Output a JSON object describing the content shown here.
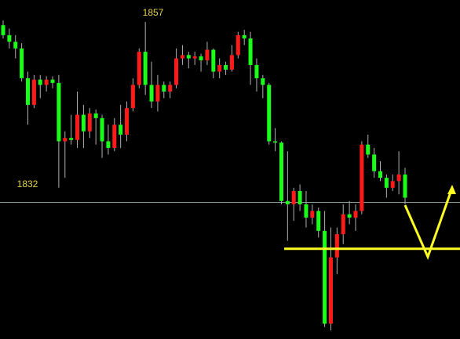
{
  "chart_data": {
    "type": "candlestick",
    "ylim": [
      1809.2,
      1860.3
    ],
    "up_color": "#ff1a1a",
    "down_color": "#1aff1a",
    "wick_color": "#b0b0b0",
    "price_line": 1829.8,
    "price_line_color": "#8a9a9a",
    "support_line": 1822.8,
    "support_color": "#ffff22",
    "annotations": [
      {
        "text": "1857"
      },
      {
        "text": "1832"
      }
    ],
    "ohlc": [
      [
        1856.5,
        1857.2,
        1854.5,
        1855
      ],
      [
        1855,
        1856,
        1853,
        1854
      ],
      [
        1854,
        1855,
        1851.5,
        1853
      ],
      [
        1853,
        1853.8,
        1848,
        1848.5
      ],
      [
        1848.5,
        1849.5,
        1841.5,
        1844.5
      ],
      [
        1844.5,
        1849,
        1844,
        1848.3
      ],
      [
        1848.3,
        1849,
        1845.5,
        1847.5
      ],
      [
        1847.5,
        1848.8,
        1846.5,
        1848.3
      ],
      [
        1848.3,
        1848.8,
        1847,
        1847.8
      ],
      [
        1847.8,
        1849,
        1832,
        1839
      ],
      [
        1839,
        1840.5,
        1833.5,
        1839.5
      ],
      [
        1839.5,
        1843,
        1838.5,
        1839.2
      ],
      [
        1839.2,
        1846.5,
        1838,
        1843
      ],
      [
        1843,
        1844.5,
        1838,
        1840.5
      ],
      [
        1840.5,
        1844,
        1839.5,
        1843.2
      ],
      [
        1843.2,
        1843.8,
        1838.5,
        1842.5
      ],
      [
        1842.5,
        1843,
        1836.5,
        1839
      ],
      [
        1839,
        1841.5,
        1837,
        1838
      ],
      [
        1838,
        1842.5,
        1837.5,
        1841.5
      ],
      [
        1841.5,
        1844.5,
        1838,
        1840
      ],
      [
        1840,
        1845,
        1839,
        1844
      ],
      [
        1844,
        1848.5,
        1843.5,
        1847.5
      ],
      [
        1847.5,
        1853,
        1847,
        1852.5
      ],
      [
        1852.5,
        1857,
        1846,
        1847.5
      ],
      [
        1847.5,
        1851,
        1844,
        1845
      ],
      [
        1845,
        1849,
        1843.5,
        1847.5
      ],
      [
        1847.5,
        1848,
        1845.5,
        1846.5
      ],
      [
        1846.5,
        1848,
        1845.5,
        1847.5
      ],
      [
        1847.5,
        1853,
        1847,
        1851.5
      ],
      [
        1851.5,
        1853.5,
        1850.5,
        1852
      ],
      [
        1852,
        1852.5,
        1850,
        1851.5
      ],
      [
        1851.5,
        1852.5,
        1850.5,
        1851.8
      ],
      [
        1851.8,
        1852.2,
        1849.5,
        1851.2
      ],
      [
        1851.2,
        1854,
        1850.5,
        1852.8
      ],
      [
        1852.8,
        1853,
        1848.5,
        1849.5
      ],
      [
        1849.5,
        1851.5,
        1848.5,
        1850.5
      ],
      [
        1850.5,
        1851,
        1849,
        1849.8
      ],
      [
        1849.8,
        1853.5,
        1849.5,
        1852
      ],
      [
        1852,
        1855.5,
        1851.5,
        1855
      ],
      [
        1855,
        1855.8,
        1853.5,
        1854.5
      ],
      [
        1854.5,
        1855.5,
        1847.5,
        1850.5
      ],
      [
        1850.5,
        1851.5,
        1846.5,
        1848.5
      ],
      [
        1848.5,
        1849,
        1845.5,
        1847.5
      ],
      [
        1847.5,
        1847.8,
        1838.5,
        1839
      ],
      [
        1839,
        1841,
        1837.5,
        1838.8
      ],
      [
        1838.8,
        1839,
        1829.5,
        1830
      ],
      [
        1830,
        1837.5,
        1824,
        1829.5
      ],
      [
        1829.5,
        1832,
        1827,
        1831.5
      ],
      [
        1831.5,
        1832.5,
        1828.5,
        1829.5
      ],
      [
        1829.5,
        1831.5,
        1826,
        1827.5
      ],
      [
        1827.5,
        1829.5,
        1826.5,
        1828.5
      ],
      [
        1828.5,
        1829,
        1824.5,
        1825.5
      ],
      [
        1825.5,
        1828.5,
        1811,
        1811.5
      ],
      [
        1811.5,
        1826,
        1810.5,
        1821.5
      ],
      [
        1821.5,
        1826,
        1819,
        1825
      ],
      [
        1825,
        1829.5,
        1823.5,
        1828
      ],
      [
        1828,
        1830,
        1826.5,
        1827.5
      ],
      [
        1827.5,
        1829.5,
        1825.5,
        1828.5
      ],
      [
        1828.5,
        1839,
        1828,
        1838.5
      ],
      [
        1838.5,
        1840,
        1836.5,
        1837
      ],
      [
        1837,
        1838,
        1833.5,
        1834.5
      ],
      [
        1834.5,
        1836,
        1833,
        1833.5
      ],
      [
        1833.5,
        1834,
        1830.5,
        1832
      ],
      [
        1832,
        1834,
        1831.5,
        1833
      ],
      [
        1833,
        1837.5,
        1831,
        1834
      ],
      [
        1834,
        1835,
        1829.5,
        1830.5
      ]
    ]
  }
}
